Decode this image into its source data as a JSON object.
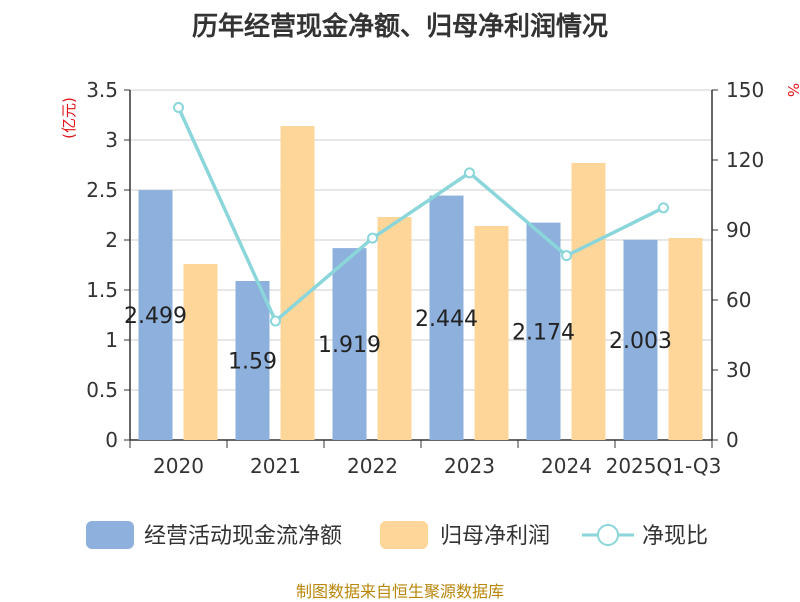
{
  "chart_data": {
    "type": "bar",
    "title": "历年经营现金净额、归母净利润情况",
    "categories": [
      "2020",
      "2021",
      "2022",
      "2023",
      "2024",
      "2025Q1-Q3"
    ],
    "left_axis": {
      "unit": "(亿元)",
      "ylim": [
        0,
        3.5
      ],
      "ticks": [
        "0",
        "0.5",
        "1",
        "1.5",
        "2",
        "2.5",
        "3",
        "3.5"
      ]
    },
    "right_axis": {
      "unit": "%",
      "ylim": [
        0,
        150
      ],
      "ticks": [
        "0",
        "30",
        "60",
        "90",
        "120",
        "150"
      ]
    },
    "series": [
      {
        "name": "经营活动现金流净额",
        "kind": "bar",
        "axis": "left",
        "color": "#8eb0dc",
        "values": [
          2.499,
          1.59,
          1.919,
          2.444,
          2.174,
          2.003
        ],
        "labels": [
          "2.499",
          "1.59",
          "1.919",
          "2.444",
          "2.174",
          "2.003"
        ]
      },
      {
        "name": "归母净利润",
        "kind": "bar",
        "axis": "left",
        "color": "#fed699",
        "values": [
          1.76,
          3.14,
          2.23,
          2.14,
          2.77,
          2.02
        ]
      },
      {
        "name": "净现比",
        "kind": "line",
        "axis": "right",
        "color": "#8ad6da",
        "values": [
          142.5,
          51,
          86.5,
          114.5,
          79,
          99.5
        ]
      }
    ],
    "grid": true,
    "legend_position": "bottom"
  },
  "source": "制图数据来自恒生聚源数据库"
}
